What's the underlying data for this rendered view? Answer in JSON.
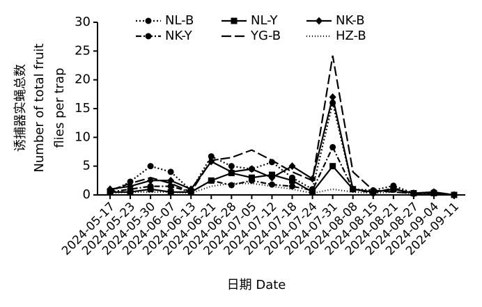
{
  "chart_data": {
    "type": "line",
    "y_label": [
      "诱捕器实蝇总数",
      "Number of total fruit",
      "flies per trap"
    ],
    "x_label": "日期 Date",
    "categories": [
      "2024-05-17",
      "2024-05-23",
      "2024-05-30",
      "2024-06-07",
      "2024-06-13",
      "2024-06-21",
      "2024-06-28",
      "2024-07-05",
      "2024-07-12",
      "2024-07-18",
      "2024-07-24",
      "2024-07-31",
      "2024-08-08",
      "2024-08-15",
      "2024-08-21",
      "2024-08-27",
      "2024-09-04",
      "2024-09-11"
    ],
    "ylim": [
      0,
      30
    ],
    "yticks": [
      0,
      5,
      10,
      15,
      20,
      25,
      30
    ],
    "series": [
      {
        "name": "NL-B",
        "color": "#000000",
        "dash": "2,3",
        "marker": "circle",
        "values": [
          0.5,
          2.3,
          5,
          4,
          0.8,
          6.7,
          5,
          4.5,
          5.7,
          3,
          1,
          16,
          1,
          0.8,
          1.6,
          0.3,
          0.5,
          0
        ]
      },
      {
        "name": "NL-Y",
        "color": "#000000",
        "dash": "none",
        "marker": "square",
        "values": [
          0.5,
          0.5,
          1,
          0.5,
          0.5,
          2.5,
          3.8,
          3,
          3.5,
          2.5,
          0.5,
          5,
          1,
          0.5,
          1,
          0.3,
          0.3,
          0
        ]
      },
      {
        "name": "NK-B",
        "color": "#000000",
        "dash": "none",
        "marker": "diamond",
        "values": [
          1,
          1.5,
          2.5,
          2.5,
          1,
          5.8,
          4,
          4.5,
          3,
          5,
          2.8,
          17,
          1,
          0.5,
          1,
          0.3,
          0.5,
          0
        ]
      },
      {
        "name": "NK-Y",
        "color": "#000000",
        "dash": "8,3,2,3",
        "marker": "circle",
        "values": [
          0.5,
          1,
          1.5,
          1.5,
          0.5,
          2.5,
          1.7,
          2.5,
          1.8,
          1.5,
          0.8,
          8.3,
          1,
          0.3,
          1.2,
          0.2,
          0.3,
          0
        ]
      },
      {
        "name": "YG-B",
        "color": "#000000",
        "dash": "14,5",
        "marker": "none",
        "values": [
          0.8,
          2,
          3,
          2,
          0.5,
          6,
          6.5,
          7.8,
          6,
          4,
          2.5,
          24.2,
          4,
          0.8,
          0.5,
          0.3,
          0.3,
          0
        ]
      },
      {
        "name": "HZ-B",
        "color": "#000000",
        "dash": "1,3",
        "marker": "none",
        "values": [
          0.3,
          0.5,
          0.5,
          0.5,
          0.3,
          1.5,
          2,
          2,
          1.5,
          1,
          0.3,
          1,
          0.5,
          0.3,
          0.5,
          0.2,
          0.2,
          0
        ]
      }
    ]
  }
}
